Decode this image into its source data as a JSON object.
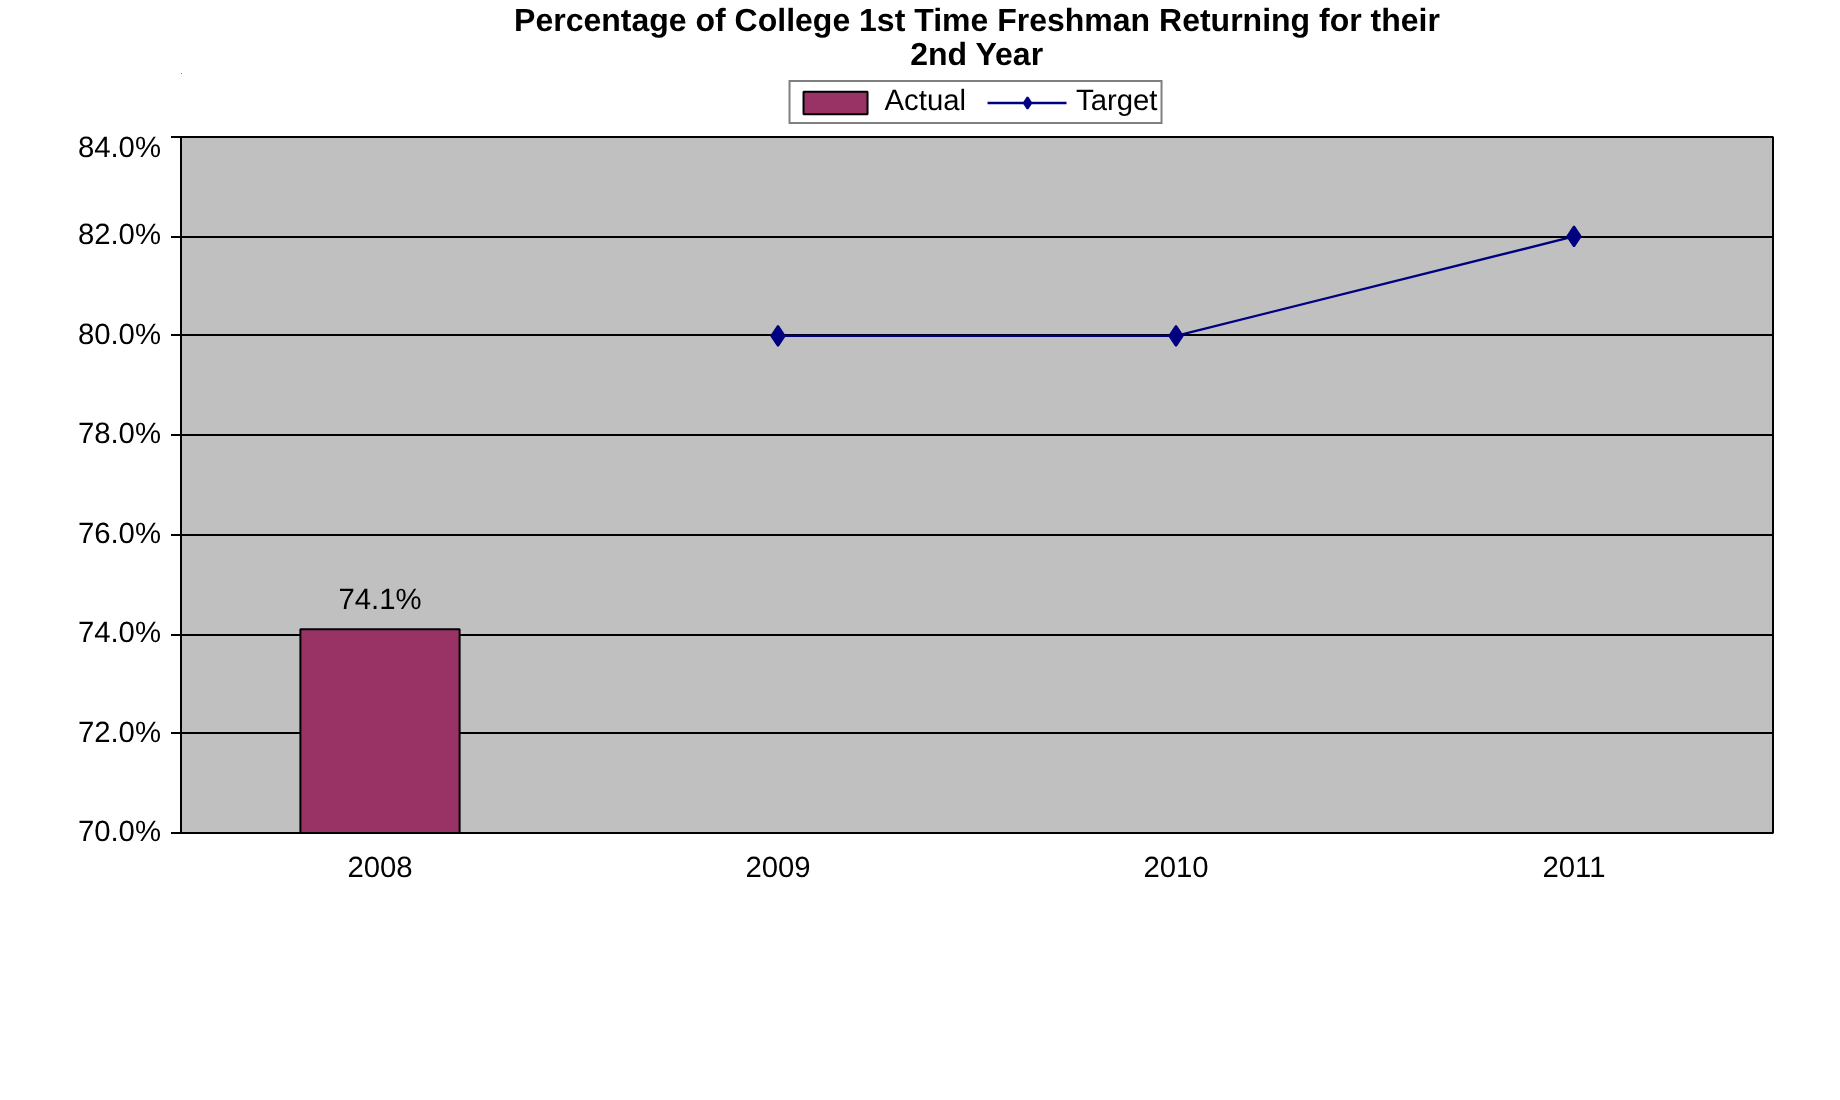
{
  "chart_data": {
    "type": "bar",
    "title": "Percentage of College 1st Time Freshman Returning for their\n2nd Year",
    "categories": [
      "2008",
      "2009",
      "2010",
      "2011"
    ],
    "series": [
      {
        "name": "Actual",
        "color": "#993366",
        "values": [
          74.1,
          null,
          null,
          null
        ],
        "value_labels": [
          "74.1%",
          null,
          null,
          null
        ]
      },
      {
        "name": "Target",
        "type": "line",
        "color": "#000080",
        "values": [
          null,
          80,
          80,
          82
        ],
        "marker": "diamond"
      }
    ],
    "ylim": [
      70,
      84
    ],
    "yticks": [
      {
        "value": 70,
        "label": "70.0%"
      },
      {
        "value": 72,
        "label": "72.0%"
      },
      {
        "value": 74,
        "label": "74.0%"
      },
      {
        "value": 76,
        "label": "76.0%"
      },
      {
        "value": 78,
        "label": "78.0%"
      },
      {
        "value": 80,
        "label": "80.0%"
      },
      {
        "value": 82,
        "label": "82.0%"
      },
      {
        "value": 84,
        "label": "84.0%"
      }
    ],
    "grid": "y",
    "legend": "top"
  }
}
